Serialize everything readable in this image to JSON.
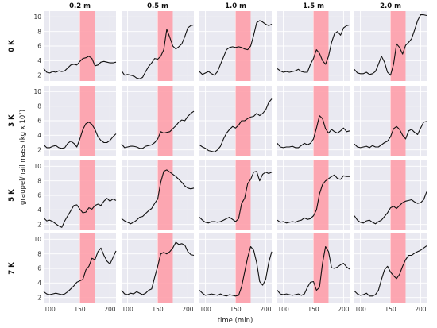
{
  "chart_data": {
    "type": "line",
    "xlabel": "time (min)",
    "ylabel": "graupel/hail mass (kg x 10⁷)",
    "xlim": [
      90,
      210
    ],
    "ylim": [
      1.2,
      10.8
    ],
    "x_ticks": [
      "100",
      "150",
      "200"
    ],
    "y_ticks": [
      "2",
      "4",
      "6",
      "8",
      "10"
    ],
    "grid": true,
    "highlight_band": {
      "x_start": 150,
      "x_end": 175,
      "color": "#ff9aa6"
    },
    "line_color": "#111111",
    "panel_bg": "#e9e9f1",
    "columns": [
      "0.2 m",
      "0.5 m",
      "1.0 m",
      "1.5 m",
      "2.0 m"
    ],
    "rows": [
      "0 K",
      "3 K",
      "5 K",
      "7 K"
    ],
    "x": [
      90,
      95,
      100,
      105,
      110,
      115,
      120,
      125,
      130,
      135,
      140,
      145,
      150,
      155,
      160,
      165,
      170,
      175,
      180,
      185,
      190,
      195,
      200,
      205,
      210
    ],
    "panels": [
      [
        {
          "values": [
            2.9,
            2.4,
            2.3,
            2.5,
            2.4,
            2.6,
            2.5,
            2.6,
            3.0,
            3.4,
            3.5,
            3.4,
            3.9,
            4.3,
            4.4,
            4.6,
            4.3,
            3.3,
            3.4,
            3.8,
            3.9,
            3.8,
            3.7,
            3.7,
            3.8
          ]
        },
        {
          "values": [
            2.6,
            2.0,
            2.1,
            2.0,
            1.9,
            1.6,
            1.5,
            1.7,
            2.5,
            3.2,
            3.7,
            4.3,
            4.2,
            4.6,
            5.5,
            8.3,
            7.2,
            6.0,
            5.6,
            5.9,
            6.3,
            7.3,
            8.5,
            8.8,
            8.9
          ]
        },
        {
          "values": [
            2.5,
            2.1,
            2.3,
            2.5,
            2.2,
            2.0,
            2.5,
            3.5,
            4.5,
            5.5,
            5.8,
            5.9,
            5.8,
            5.9,
            5.8,
            5.6,
            5.5,
            6.0,
            7.5,
            9.2,
            9.5,
            9.3,
            9.0,
            8.8,
            9.0
          ]
        },
        {
          "values": [
            2.9,
            2.6,
            2.4,
            2.5,
            2.4,
            2.5,
            2.6,
            2.8,
            2.5,
            2.4,
            2.4,
            3.5,
            4.3,
            5.5,
            5.0,
            4.0,
            3.5,
            4.6,
            6.5,
            7.7,
            8.0,
            7.5,
            8.5,
            8.8,
            8.9
          ]
        },
        {
          "values": [
            2.8,
            2.3,
            2.2,
            2.2,
            2.4,
            2.1,
            2.2,
            2.5,
            3.5,
            4.6,
            3.8,
            2.4,
            2.0,
            3.5,
            6.3,
            5.8,
            4.9,
            6.1,
            6.5,
            7.0,
            8.2,
            9.5,
            10.3,
            10.3,
            10.2
          ]
        }
      ],
      [
        {
          "values": [
            2.7,
            2.3,
            2.3,
            2.5,
            2.6,
            2.3,
            2.2,
            2.3,
            2.9,
            3.2,
            2.9,
            2.4,
            3.5,
            4.8,
            5.6,
            5.8,
            5.5,
            4.8,
            3.8,
            3.3,
            3.0,
            3.0,
            3.3,
            3.8,
            4.2
          ]
        },
        {
          "values": [
            2.8,
            2.3,
            2.4,
            2.5,
            2.5,
            2.4,
            2.2,
            2.2,
            2.5,
            2.6,
            2.7,
            3.0,
            3.5,
            4.5,
            4.3,
            4.4,
            4.5,
            4.9,
            5.3,
            5.8,
            6.1,
            6.0,
            6.6,
            7.0,
            7.3
          ]
        },
        {
          "values": [
            2.7,
            2.4,
            2.2,
            1.9,
            1.8,
            1.7,
            2.0,
            2.5,
            3.5,
            4.3,
            4.8,
            5.2,
            5.0,
            5.4,
            6.0,
            6.0,
            6.3,
            6.5,
            6.6,
            7.0,
            6.7,
            7.0,
            7.5,
            8.5,
            9.0
          ]
        },
        {
          "values": [
            2.9,
            2.4,
            2.3,
            2.4,
            2.4,
            2.5,
            2.3,
            2.3,
            2.6,
            2.9,
            2.7,
            2.9,
            3.5,
            5.0,
            6.7,
            6.3,
            4.9,
            4.3,
            4.8,
            4.5,
            4.3,
            4.6,
            5.0,
            4.5,
            4.6
          ]
        },
        {
          "values": [
            2.8,
            2.4,
            2.3,
            2.4,
            2.5,
            2.3,
            2.6,
            2.4,
            2.4,
            2.7,
            3.0,
            3.2,
            3.8,
            4.9,
            5.2,
            4.8,
            4.0,
            3.5,
            4.6,
            4.8,
            4.4,
            4.1,
            5.0,
            5.8,
            5.9
          ]
        }
      ],
      [
        {
          "values": [
            2.9,
            2.5,
            2.6,
            2.4,
            2.1,
            1.8,
            1.6,
            2.5,
            3.2,
            3.9,
            4.6,
            4.7,
            4.1,
            3.6,
            3.7,
            4.3,
            4.1,
            4.6,
            4.8,
            4.6,
            5.2,
            5.6,
            5.2,
            5.5,
            5.3
          ]
        },
        {
          "values": [
            2.8,
            2.5,
            2.3,
            2.1,
            2.3,
            2.6,
            3.0,
            3.1,
            3.5,
            3.9,
            4.2,
            4.9,
            5.5,
            7.8,
            9.3,
            9.5,
            9.2,
            8.9,
            8.6,
            8.2,
            7.8,
            7.3,
            7.0,
            6.9,
            7.0
          ]
        },
        {
          "values": [
            3.0,
            2.6,
            2.3,
            2.2,
            2.4,
            2.4,
            2.3,
            2.4,
            2.6,
            2.8,
            3.0,
            2.7,
            2.4,
            2.8,
            4.9,
            5.6,
            7.6,
            8.2,
            9.2,
            9.3,
            8.0,
            8.9,
            9.2,
            9.0,
            9.2
          ]
        },
        {
          "values": [
            2.6,
            2.3,
            2.4,
            2.2,
            2.3,
            2.4,
            2.3,
            2.5,
            2.6,
            2.9,
            2.7,
            2.8,
            3.2,
            4.0,
            6.2,
            7.5,
            8.0,
            8.3,
            8.6,
            8.8,
            8.3,
            8.2,
            8.7,
            8.6,
            8.6
          ]
        },
        {
          "values": [
            3.2,
            2.6,
            2.3,
            2.2,
            2.5,
            2.6,
            2.3,
            2.1,
            2.4,
            2.6,
            3.1,
            3.6,
            4.3,
            4.5,
            4.2,
            4.6,
            5.0,
            5.2,
            5.3,
            5.4,
            5.1,
            4.9,
            5.0,
            5.4,
            6.5
          ]
        }
      ],
      [
        {
          "values": [
            2.8,
            2.5,
            2.4,
            2.5,
            2.6,
            2.5,
            2.4,
            2.5,
            2.8,
            3.2,
            3.6,
            4.1,
            4.3,
            4.5,
            5.8,
            6.3,
            7.4,
            7.2,
            8.3,
            8.8,
            7.8,
            7.0,
            6.6,
            7.5,
            8.4
          ]
        },
        {
          "values": [
            3.0,
            2.5,
            2.4,
            2.6,
            2.5,
            2.8,
            2.6,
            2.4,
            2.6,
            3.0,
            3.2,
            4.8,
            6.3,
            8.0,
            8.2,
            8.0,
            8.3,
            8.8,
            9.6,
            9.3,
            9.4,
            9.2,
            8.3,
            7.9,
            7.8
          ]
        },
        {
          "values": [
            3.0,
            2.6,
            2.3,
            2.4,
            2.5,
            2.4,
            2.3,
            2.5,
            2.3,
            2.2,
            2.4,
            2.3,
            2.2,
            2.3,
            3.5,
            5.5,
            7.5,
            9.0,
            8.5,
            6.8,
            4.2,
            3.7,
            4.5,
            6.8,
            8.3
          ]
        },
        {
          "values": [
            3.0,
            2.5,
            2.4,
            2.5,
            2.4,
            2.3,
            2.4,
            2.5,
            2.3,
            2.5,
            3.4,
            4.1,
            4.2,
            3.0,
            3.4,
            6.7,
            9.0,
            8.3,
            6.1,
            6.0,
            6.2,
            6.5,
            6.7,
            6.2,
            5.9
          ]
        },
        {
          "values": [
            2.9,
            2.5,
            2.3,
            2.4,
            2.6,
            2.2,
            2.2,
            2.4,
            3.0,
            4.5,
            5.8,
            6.3,
            5.5,
            5.0,
            4.6,
            5.2,
            6.3,
            7.2,
            7.8,
            7.8,
            8.1,
            8.3,
            8.5,
            8.8,
            9.1
          ]
        }
      ]
    ]
  }
}
